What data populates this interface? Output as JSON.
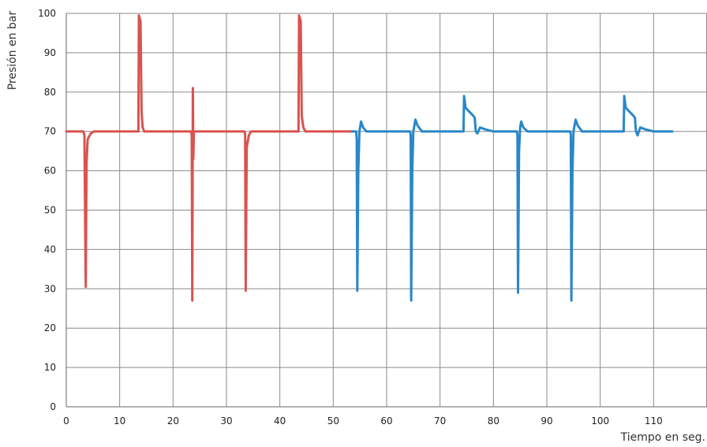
{
  "chart_data": {
    "type": "line",
    "title": "",
    "xlabel": "Tiempo en seg.",
    "ylabel": "Presión en bar",
    "xlim": [
      0,
      120
    ],
    "ylim": [
      0,
      100
    ],
    "x_ticks": [
      0,
      10,
      20,
      30,
      40,
      50,
      60,
      70,
      80,
      90,
      100,
      110
    ],
    "y_ticks": [
      0,
      10,
      20,
      30,
      40,
      50,
      60,
      70,
      80,
      90,
      100
    ],
    "grid": true,
    "legend": "none",
    "series": [
      {
        "color": "#d9534f",
        "points": [
          [
            0,
            70
          ],
          [
            3.2,
            70
          ],
          [
            3.4,
            69
          ],
          [
            3.55,
            45
          ],
          [
            3.65,
            30.5
          ],
          [
            3.8,
            62
          ],
          [
            4.0,
            68
          ],
          [
            4.6,
            69.5
          ],
          [
            5.2,
            70
          ],
          [
            13.5,
            70
          ],
          [
            13.6,
            99.5
          ],
          [
            13.9,
            98
          ],
          [
            14.1,
            75
          ],
          [
            14.3,
            71
          ],
          [
            14.6,
            70
          ],
          [
            23.4,
            70
          ],
          [
            23.5,
            69
          ],
          [
            23.6,
            27
          ],
          [
            23.7,
            81
          ],
          [
            23.8,
            63
          ],
          [
            23.9,
            70
          ],
          [
            33.4,
            70
          ],
          [
            33.5,
            69
          ],
          [
            33.6,
            29.5
          ],
          [
            33.8,
            66
          ],
          [
            34.2,
            69
          ],
          [
            34.6,
            70
          ],
          [
            43.5,
            70
          ],
          [
            43.6,
            99.5
          ],
          [
            43.9,
            98
          ],
          [
            44.1,
            74
          ],
          [
            44.4,
            71
          ],
          [
            44.8,
            70
          ],
          [
            53.5,
            70
          ]
        ]
      },
      {
        "color": "#2a87c8",
        "points": [
          [
            53.5,
            70
          ],
          [
            54.3,
            70
          ],
          [
            54.4,
            68
          ],
          [
            54.5,
            29.5
          ],
          [
            54.7,
            60
          ],
          [
            54.9,
            70
          ],
          [
            55.2,
            72.5
          ],
          [
            55.6,
            71
          ],
          [
            56.2,
            70
          ],
          [
            64.4,
            70
          ],
          [
            64.5,
            69
          ],
          [
            64.6,
            27
          ],
          [
            64.8,
            60
          ],
          [
            65.0,
            70
          ],
          [
            65.4,
            73
          ],
          [
            65.8,
            71.5
          ],
          [
            66.6,
            70
          ],
          [
            74.4,
            70
          ],
          [
            74.5,
            79
          ],
          [
            74.8,
            76
          ],
          [
            75.5,
            75
          ],
          [
            76.2,
            74
          ],
          [
            76.5,
            73.5
          ],
          [
            76.7,
            70
          ],
          [
            77.0,
            69.5
          ],
          [
            77.5,
            71
          ],
          [
            78.5,
            70.5
          ],
          [
            80,
            70
          ],
          [
            84.4,
            70
          ],
          [
            84.5,
            69
          ],
          [
            84.6,
            29
          ],
          [
            84.8,
            65
          ],
          [
            85.0,
            71
          ],
          [
            85.2,
            72.5
          ],
          [
            85.6,
            71
          ],
          [
            86.4,
            70
          ],
          [
            94.4,
            70
          ],
          [
            94.5,
            69
          ],
          [
            94.6,
            27
          ],
          [
            94.8,
            60
          ],
          [
            95.0,
            70
          ],
          [
            95.4,
            73
          ],
          [
            95.8,
            71.5
          ],
          [
            96.6,
            70
          ],
          [
            104.4,
            70
          ],
          [
            104.5,
            79
          ],
          [
            104.8,
            76
          ],
          [
            105.5,
            75
          ],
          [
            106.2,
            74
          ],
          [
            106.5,
            73.5
          ],
          [
            106.7,
            70
          ],
          [
            107.0,
            69
          ],
          [
            107.5,
            71
          ],
          [
            108.5,
            70.5
          ],
          [
            110,
            70
          ],
          [
            113.5,
            70
          ]
        ]
      }
    ]
  }
}
